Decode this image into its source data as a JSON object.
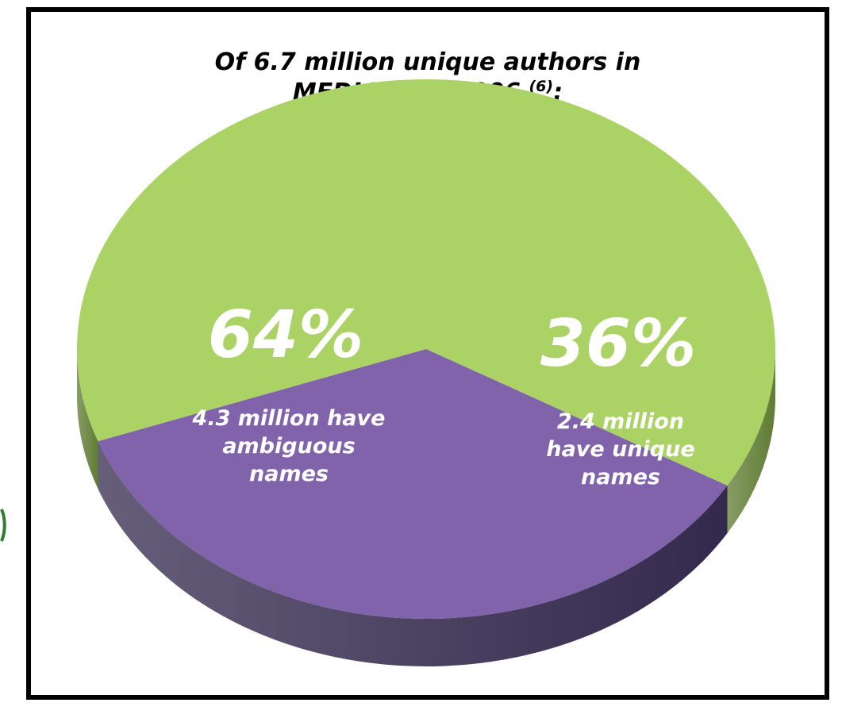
{
  "title": {
    "line1": "Of 6.7 million unique authors in",
    "line2": "MEDLINE in 2006",
    "footnote": "(6)",
    "colon": ":"
  },
  "chart_data": {
    "type": "pie",
    "style": "3d",
    "title": "Of 6.7 million unique authors in MEDLINE in 2006 (6):",
    "slices": [
      {
        "percent_label": "64%",
        "value": 64,
        "lines": [
          "4.3 million have",
          "ambiguous",
          "names"
        ],
        "color": "#abd264",
        "side_color": "#5f7c33"
      },
      {
        "percent_label": "36%",
        "value": 36,
        "lines": [
          "2.4 million",
          "have unique",
          "names"
        ],
        "color": "#8063ab",
        "side_color": "#33294d"
      }
    ]
  }
}
